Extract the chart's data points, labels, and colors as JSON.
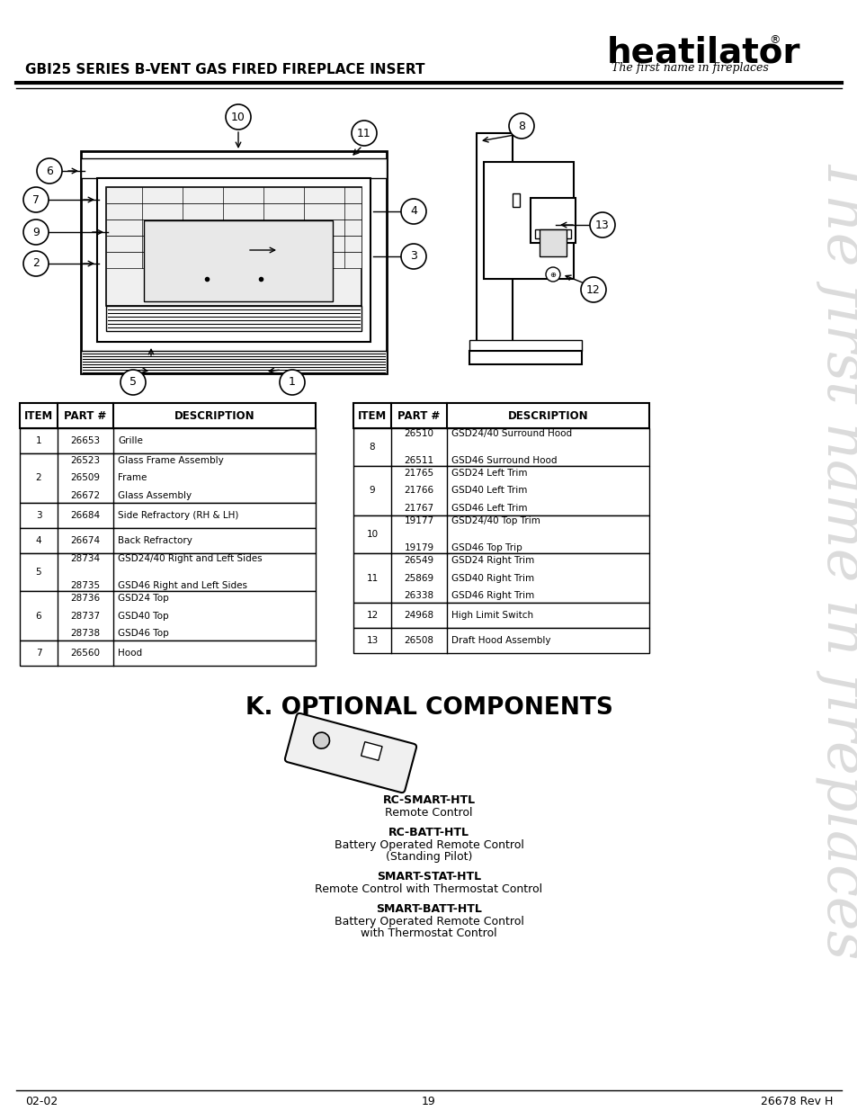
{
  "page_title": "GBI25 SERIES B-VENT GAS FIRED FIREPLACE INSERT",
  "brand": "heatilator",
  "brand_tagline": "The first name in fireplaces",
  "watermark_text": "The first name in fireplaces",
  "section_title": "K. OPTIONAL COMPONENTS",
  "table1_headers": [
    "ITEM",
    "PART #",
    "DESCRIPTION"
  ],
  "table1_rows": [
    [
      "1",
      "26653",
      "Grille"
    ],
    [
      "2",
      "26523\n26509\n26672",
      "Glass Frame Assembly\nFrame\nGlass Assembly"
    ],
    [
      "3",
      "26684",
      "Side Refractory (RH & LH)"
    ],
    [
      "4",
      "26674",
      "Back Refractory"
    ],
    [
      "5",
      "28734\n28735",
      "GSD24/40 Right and Left Sides\nGSD46 Right and Left Sides"
    ],
    [
      "6",
      "28736\n28737\n28738",
      "GSD24 Top\nGSD40 Top\nGSD46 Top"
    ],
    [
      "7",
      "26560",
      "Hood"
    ]
  ],
  "table2_headers": [
    "ITEM",
    "PART #",
    "DESCRIPTION"
  ],
  "table2_rows": [
    [
      "8",
      "26510\n26511",
      "GSD24/40 Surround Hood\nGSD46 Surround Hood"
    ],
    [
      "9",
      "21765\n21766\n21767",
      "GSD24 Left Trim\nGSD40 Left Trim\nGSD46 Left Trim"
    ],
    [
      "10",
      "19177\n19179",
      "GSD24/40 Top Trim\nGSD46 Top Trip"
    ],
    [
      "11",
      "26549\n25869\n26338",
      "GSD24 Right Trim\nGSD40 Right Trim\nGSD46 Right Trim"
    ],
    [
      "12",
      "24968",
      "High Limit Switch"
    ],
    [
      "13",
      "26508",
      "Draft Hood Assembly"
    ]
  ],
  "optional_items": [
    {
      "bold": "RC-SMART-HTL",
      "normal": "Remote Control"
    },
    {
      "bold": "RC-BATT-HTL",
      "normal": "Battery Operated Remote Control\n(Standing Pilot)"
    },
    {
      "bold": "SMART-STAT-HTL",
      "normal": "Remote Control with Thermostat Control"
    },
    {
      "bold": "SMART-BATT-HTL",
      "normal": "Battery Operated Remote Control\nwith Thermostat Control"
    }
  ],
  "footer_left": "02-02",
  "footer_center": "19",
  "footer_right": "26678 Rev H",
  "bg_color": "#ffffff"
}
